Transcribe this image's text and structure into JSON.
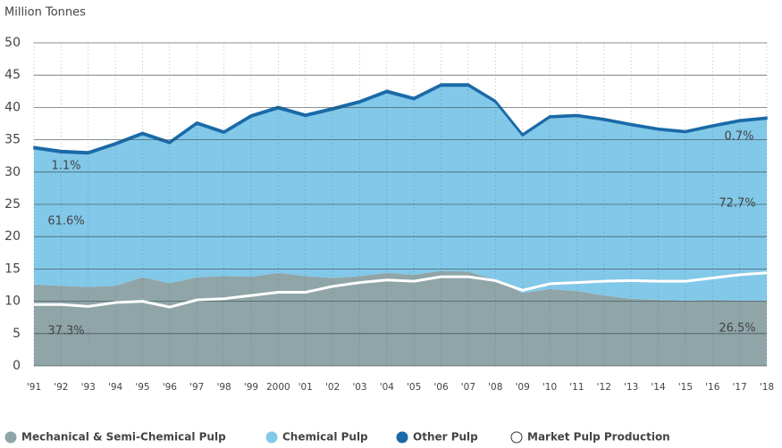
{
  "chart_data": {
    "type": "area",
    "y_axis_label": "Million Tonnes",
    "categories": [
      "'91",
      "'92",
      "'93",
      "'94",
      "'95",
      "'96",
      "'97",
      "'98",
      "'99",
      "2000",
      "'01",
      "'02",
      "'03",
      "'04",
      "'05",
      "'06",
      "'07",
      "'08",
      "'09",
      "'10",
      "'11",
      "'12",
      "'13",
      "'14",
      "'15",
      "'16",
      "'17",
      "'18"
    ],
    "series": [
      {
        "name": "Mechanical & Semi-Chemical Pulp",
        "color": "#8fa5a8",
        "type": "area",
        "values": [
          12.6,
          12.4,
          12.2,
          12.4,
          13.7,
          12.8,
          13.7,
          13.9,
          13.8,
          14.4,
          13.9,
          13.6,
          13.9,
          14.4,
          14.1,
          14.7,
          14.6,
          13.3,
          11.3,
          11.9,
          11.6,
          10.9,
          10.4,
          10.2,
          10.1,
          10.2,
          10.1,
          10.1
        ]
      },
      {
        "name": "Chemical Pulp",
        "color": "#82c8e8",
        "type": "area",
        "values": [
          21.0,
          20.6,
          20.6,
          21.8,
          22.1,
          21.6,
          23.7,
          22.1,
          24.7,
          25.4,
          24.7,
          26.0,
          26.8,
          27.9,
          27.1,
          28.6,
          28.7,
          27.5,
          24.3,
          26.5,
          27.0,
          27.1,
          26.8,
          26.3,
          26.0,
          26.8,
          27.7,
          28.1
        ]
      },
      {
        "name": "Other Pulp",
        "color": "#1a6aa8",
        "type": "area",
        "values": [
          0.35,
          0.35,
          0.35,
          0.35,
          0.35,
          0.35,
          0.35,
          0.35,
          0.35,
          0.35,
          0.35,
          0.35,
          0.35,
          0.35,
          0.35,
          0.35,
          0.35,
          0.3,
          0.3,
          0.3,
          0.3,
          0.3,
          0.3,
          0.3,
          0.3,
          0.3,
          0.3,
          0.3
        ]
      },
      {
        "name": "Market Pulp Production",
        "color": "#ffffff",
        "type": "line",
        "values": [
          9.5,
          9.5,
          9.2,
          9.8,
          10.0,
          9.1,
          10.2,
          10.4,
          10.9,
          11.4,
          11.4,
          12.3,
          12.9,
          13.3,
          13.1,
          13.8,
          13.8,
          13.2,
          11.7,
          12.7,
          12.9,
          13.1,
          13.2,
          13.1,
          13.1,
          13.6,
          14.1,
          14.4
        ]
      }
    ],
    "annotations": [
      "37.3%",
      "61.6%",
      "1.1%",
      "0.7%",
      "72.7%",
      "26.5%"
    ],
    "ylim": [
      0,
      50
    ],
    "yticks": [
      0,
      5,
      10,
      15,
      20,
      25,
      30,
      35,
      40,
      45,
      50
    ],
    "grid": true
  }
}
